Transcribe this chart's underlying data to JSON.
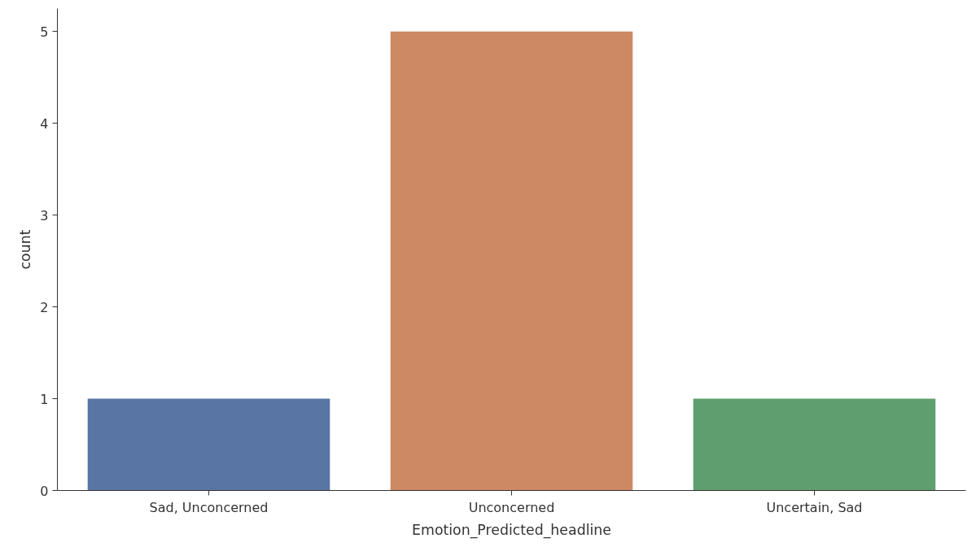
{
  "chart_data": {
    "type": "bar",
    "xlabel": "Emotion_Predicted_headline",
    "ylabel": "count",
    "categories": [
      "Sad, Unconcerned",
      "Unconcerned",
      "Uncertain, Sad"
    ],
    "values": [
      1,
      5,
      1
    ],
    "colors": [
      "#5975a4",
      "#cc8963",
      "#5f9e6e"
    ],
    "ylim": [
      0,
      5.25
    ],
    "yticks": [
      0,
      1,
      2,
      3,
      4,
      5
    ],
    "grid": false
  }
}
